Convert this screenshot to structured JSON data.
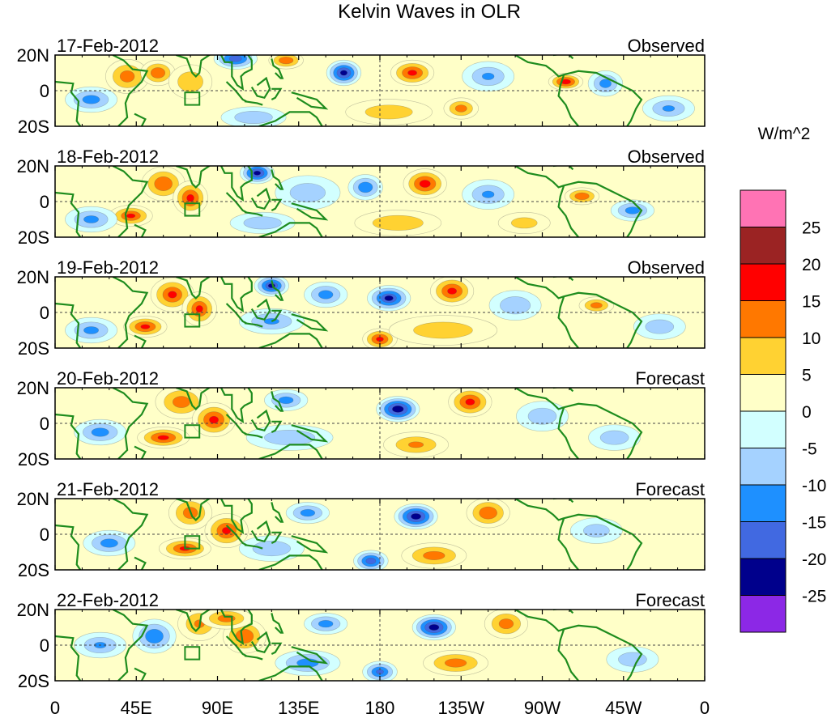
{
  "chart_data": {
    "type": "heatmap",
    "title": "Kelvin Waves in OLR",
    "units_label": "W/m^2",
    "x_tick_labels": [
      "0",
      "45E",
      "90E",
      "135E",
      "180",
      "135W",
      "90W",
      "45W",
      "0"
    ],
    "x_tick_lons": [
      0,
      45,
      90,
      135,
      180,
      225,
      270,
      315,
      360
    ],
    "y_tick_labels": [
      "20N",
      "0",
      "20S"
    ],
    "y_tick_lats": [
      20,
      0,
      -20
    ],
    "lat_range": [
      -20,
      20
    ],
    "lon_range": [
      0,
      360
    ],
    "colorbar_levels": [
      "25",
      "20",
      "15",
      "10",
      "5",
      "0",
      "-5",
      "-10",
      "-15",
      "-20",
      "-25"
    ],
    "colorbar_colors": [
      "#ff73b4",
      "#9b2323",
      "#ff0000",
      "#ff7800",
      "#ffd232",
      "#ffffc8",
      "#d2ffff",
      "#a5d2ff",
      "#1e90ff",
      "#4169e1",
      "#00008c",
      "#8c28e6"
    ],
    "panels": [
      {
        "date": "17-Feb-2012",
        "status": "Observed",
        "anomalies": [
          {
            "lon": 40,
            "lat": 8,
            "value": 12,
            "slon": 10,
            "slat": 8
          },
          {
            "lon": 57,
            "lat": 10,
            "value": 14,
            "slon": 8,
            "slat": 6
          },
          {
            "lon": 75,
            "lat": 5,
            "value": 9,
            "slon": 10,
            "slat": 8
          },
          {
            "lon": 100,
            "lat": 18,
            "value": -18,
            "slon": 10,
            "slat": 5
          },
          {
            "lon": 128,
            "lat": 17,
            "value": 14,
            "slon": 8,
            "slat": 4
          },
          {
            "lon": 160,
            "lat": 10,
            "value": -22,
            "slon": 8,
            "slat": 6
          },
          {
            "lon": 198,
            "lat": 10,
            "value": 16,
            "slon": 10,
            "slat": 6
          },
          {
            "lon": 240,
            "lat": 8,
            "value": -10,
            "slon": 12,
            "slat": 7
          },
          {
            "lon": 283,
            "lat": 5,
            "value": 18,
            "slon": 8,
            "slat": 4
          },
          {
            "lon": 305,
            "lat": 4,
            "value": -12,
            "slon": 8,
            "slat": 6
          },
          {
            "lon": 20,
            "lat": -5,
            "value": -12,
            "slon": 12,
            "slat": 6
          },
          {
            "lon": 185,
            "lat": -12,
            "value": 8,
            "slon": 20,
            "slat": 6
          },
          {
            "lon": 225,
            "lat": -10,
            "value": 12,
            "slon": 8,
            "slat": 5
          },
          {
            "lon": 340,
            "lat": -10,
            "value": -10,
            "slon": 12,
            "slat": 6
          },
          {
            "lon": 110,
            "lat": -15,
            "value": -9,
            "slon": 15,
            "slat": 5
          }
        ]
      },
      {
        "date": "18-Feb-2012",
        "status": "Observed",
        "anomalies": [
          {
            "lon": 60,
            "lat": 10,
            "value": 14,
            "slon": 10,
            "slat": 8
          },
          {
            "lon": 75,
            "lat": 2,
            "value": 16,
            "slon": 8,
            "slat": 8
          },
          {
            "lon": 42,
            "lat": -8,
            "value": 15,
            "slon": 10,
            "slat": 5
          },
          {
            "lon": 112,
            "lat": 16,
            "value": -22,
            "slon": 8,
            "slat": 5
          },
          {
            "lon": 140,
            "lat": 5,
            "value": -8,
            "slon": 15,
            "slat": 8
          },
          {
            "lon": 172,
            "lat": 8,
            "value": -14,
            "slon": 8,
            "slat": 6
          },
          {
            "lon": 205,
            "lat": 10,
            "value": 17,
            "slon": 10,
            "slat": 7
          },
          {
            "lon": 240,
            "lat": 4,
            "value": -10,
            "slon": 12,
            "slat": 7
          },
          {
            "lon": 292,
            "lat": 3,
            "value": 14,
            "slon": 8,
            "slat": 4
          },
          {
            "lon": 320,
            "lat": -5,
            "value": -12,
            "slon": 10,
            "slat": 5
          },
          {
            "lon": 20,
            "lat": -10,
            "value": -11,
            "slon": 12,
            "slat": 6
          },
          {
            "lon": 190,
            "lat": -12,
            "value": 9,
            "slon": 20,
            "slat": 6
          },
          {
            "lon": 115,
            "lat": -12,
            "value": -9,
            "slon": 15,
            "slat": 5
          },
          {
            "lon": 260,
            "lat": -12,
            "value": 7,
            "slon": 12,
            "slat": 5
          }
        ]
      },
      {
        "date": "19-Feb-2012",
        "status": "Observed",
        "anomalies": [
          {
            "lon": 65,
            "lat": 10,
            "value": 15,
            "slon": 10,
            "slat": 8
          },
          {
            "lon": 80,
            "lat": 2,
            "value": 15,
            "slon": 8,
            "slat": 8
          },
          {
            "lon": 50,
            "lat": -8,
            "value": 16,
            "slon": 10,
            "slat": 5
          },
          {
            "lon": 120,
            "lat": 15,
            "value": -20,
            "slon": 8,
            "slat": 5
          },
          {
            "lon": 150,
            "lat": 10,
            "value": -12,
            "slon": 10,
            "slat": 6
          },
          {
            "lon": 185,
            "lat": 8,
            "value": -20,
            "slon": 10,
            "slat": 6
          },
          {
            "lon": 220,
            "lat": 12,
            "value": 16,
            "slon": 10,
            "slat": 7
          },
          {
            "lon": 255,
            "lat": 4,
            "value": -9,
            "slon": 12,
            "slat": 7
          },
          {
            "lon": 300,
            "lat": 4,
            "value": 12,
            "slon": 8,
            "slat": 4
          },
          {
            "lon": 20,
            "lat": -10,
            "value": -11,
            "slon": 12,
            "slat": 6
          },
          {
            "lon": 120,
            "lat": -5,
            "value": -10,
            "slon": 15,
            "slat": 6
          },
          {
            "lon": 180,
            "lat": -15,
            "value": 16,
            "slon": 8,
            "slat": 5
          },
          {
            "lon": 215,
            "lat": -10,
            "value": 8,
            "slon": 25,
            "slat": 7
          },
          {
            "lon": 335,
            "lat": -8,
            "value": -8,
            "slon": 12,
            "slat": 6
          }
        ]
      },
      {
        "date": "20-Feb-2012",
        "status": "Forecast",
        "anomalies": [
          {
            "lon": 70,
            "lat": 12,
            "value": 12,
            "slon": 12,
            "slat": 8
          },
          {
            "lon": 88,
            "lat": 2,
            "value": 16,
            "slon": 10,
            "slat": 8
          },
          {
            "lon": 60,
            "lat": -8,
            "value": 16,
            "slon": 12,
            "slat": 5
          },
          {
            "lon": 128,
            "lat": 13,
            "value": -12,
            "slon": 10,
            "slat": 5
          },
          {
            "lon": 190,
            "lat": 8,
            "value": -24,
            "slon": 10,
            "slat": 6
          },
          {
            "lon": 230,
            "lat": 12,
            "value": 16,
            "slon": 10,
            "slat": 7
          },
          {
            "lon": 270,
            "lat": 4,
            "value": -8,
            "slon": 12,
            "slat": 7
          },
          {
            "lon": 25,
            "lat": -5,
            "value": -12,
            "slon": 12,
            "slat": 6
          },
          {
            "lon": 130,
            "lat": -8,
            "value": -9,
            "slon": 20,
            "slat": 6
          },
          {
            "lon": 200,
            "lat": -12,
            "value": 10,
            "slon": 15,
            "slat": 6
          },
          {
            "lon": 310,
            "lat": -8,
            "value": -8,
            "slon": 12,
            "slat": 6
          }
        ]
      },
      {
        "date": "21-Feb-2012",
        "status": "Forecast",
        "anomalies": [
          {
            "lon": 75,
            "lat": 12,
            "value": 12,
            "slon": 10,
            "slat": 8
          },
          {
            "lon": 95,
            "lat": 2,
            "value": 15,
            "slon": 10,
            "slat": 8
          },
          {
            "lon": 72,
            "lat": -8,
            "value": 15,
            "slon": 12,
            "slat": 5
          },
          {
            "lon": 140,
            "lat": 12,
            "value": -12,
            "slon": 10,
            "slat": 5
          },
          {
            "lon": 200,
            "lat": 10,
            "value": -23,
            "slon": 10,
            "slat": 6
          },
          {
            "lon": 240,
            "lat": 12,
            "value": 14,
            "slon": 10,
            "slat": 7
          },
          {
            "lon": 30,
            "lat": -5,
            "value": -12,
            "slon": 12,
            "slat": 6
          },
          {
            "lon": 175,
            "lat": -15,
            "value": -18,
            "slon": 8,
            "slat": 5
          },
          {
            "lon": 210,
            "lat": -12,
            "value": 12,
            "slon": 15,
            "slat": 6
          },
          {
            "lon": 120,
            "lat": -8,
            "value": -9,
            "slon": 15,
            "slat": 6
          },
          {
            "lon": 300,
            "lat": 2,
            "value": -7,
            "slon": 12,
            "slat": 6
          }
        ]
      },
      {
        "date": "22-Feb-2012",
        "status": "Forecast",
        "anomalies": [
          {
            "lon": 80,
            "lat": 12,
            "value": 10,
            "slon": 10,
            "slat": 8
          },
          {
            "lon": 105,
            "lat": 5,
            "value": 14,
            "slon": 10,
            "slat": 8
          },
          {
            "lon": 95,
            "lat": 15,
            "value": 12,
            "slon": 12,
            "slat": 5
          },
          {
            "lon": 55,
            "lat": 5,
            "value": -14,
            "slon": 10,
            "slat": 8
          },
          {
            "lon": 150,
            "lat": 12,
            "value": -12,
            "slon": 10,
            "slat": 5
          },
          {
            "lon": 210,
            "lat": 10,
            "value": -23,
            "slon": 10,
            "slat": 6
          },
          {
            "lon": 250,
            "lat": 12,
            "value": 12,
            "slon": 10,
            "slat": 7
          },
          {
            "lon": 25,
            "lat": 0,
            "value": -10,
            "slon": 12,
            "slat": 6
          },
          {
            "lon": 140,
            "lat": -10,
            "value": -12,
            "slon": 15,
            "slat": 6
          },
          {
            "lon": 180,
            "lat": -15,
            "value": -16,
            "slon": 8,
            "slat": 5
          },
          {
            "lon": 222,
            "lat": -10,
            "value": 12,
            "slon": 15,
            "slat": 6
          },
          {
            "lon": 320,
            "lat": -8,
            "value": -8,
            "slon": 12,
            "slat": 6
          }
        ]
      }
    ]
  }
}
